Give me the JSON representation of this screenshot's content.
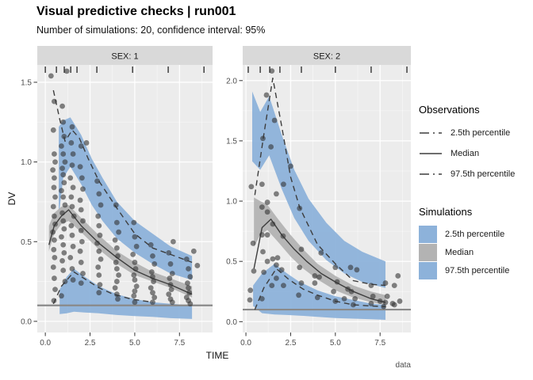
{
  "header": {
    "title": "Visual predictive checks | run001",
    "subtitle": "Number of simulations: 20, confidence interval: 95%"
  },
  "caption": "data",
  "axes": {
    "x_label": "TIME",
    "y_label": "DV"
  },
  "colors": {
    "sim_blue": "#8DB2DA",
    "sim_gray": "#B3B3B3",
    "obs_line": "#3D3D3D",
    "lloq_line": "#8A8A8A",
    "point": "#333333",
    "panel_bg": "#ECECEC",
    "strip_bg": "#D9D9D9",
    "grid": "#FFFFFF",
    "tick_text": "#4D4D4D",
    "strip_text": "#1A1A1A"
  },
  "legend": {
    "observations": {
      "title": "Observations",
      "items": [
        {
          "label": "2.5th percentile",
          "style": "dashed"
        },
        {
          "label": "Median",
          "style": "solid"
        },
        {
          "label": "97.5th percentile",
          "style": "dashed"
        }
      ]
    },
    "simulations": {
      "title": "Simulations",
      "items": [
        {
          "label": "2.5th percentile",
          "color": "#8DB2DA"
        },
        {
          "label": "Median",
          "color": "#B3B3B3"
        },
        {
          "label": "97.5th percentile",
          "color": "#8DB2DA"
        }
      ]
    }
  },
  "chart_data": [
    {
      "type": "scatter",
      "facet_label": "SEX: 1",
      "xlim": [
        -0.45,
        9.35
      ],
      "ylim": [
        -0.07,
        1.609
      ],
      "x_ticks": {
        "values": [
          0,
          2.5,
          5,
          7.5
        ],
        "labels": [
          "0.0",
          "2.5",
          "5.0",
          "7.5"
        ]
      },
      "y_ticks": {
        "values": [
          0,
          0.5,
          1.0,
          1.5
        ],
        "labels": [
          "0.0",
          "0.5",
          "1.0",
          "1.5"
        ]
      },
      "lloq": 0.1,
      "rug": [
        0.0,
        0.62,
        1.06,
        1.42,
        1.77,
        2.88,
        4.88,
        6.87,
        8.87
      ],
      "ribbon_p975": {
        "x": [
          0.75,
          1.0,
          1.4,
          2.0,
          2.6,
          3.2,
          4.0,
          5.0,
          6.0,
          7.0,
          8.2
        ],
        "upper": [
          1.22,
          1.26,
          1.28,
          1.17,
          1.02,
          0.9,
          0.75,
          0.63,
          0.55,
          0.47,
          0.41
        ],
        "lower": [
          0.66,
          0.9,
          0.97,
          0.86,
          0.73,
          0.63,
          0.52,
          0.43,
          0.36,
          0.3,
          0.26
        ]
      },
      "ribbon_median": {
        "x": [
          0.2,
          0.5,
          0.9,
          1.3,
          2.0,
          3.0,
          4.0,
          5.0,
          6.0,
          7.0,
          8.2
        ],
        "upper": [
          0.6,
          0.68,
          0.72,
          0.73,
          0.65,
          0.54,
          0.44,
          0.37,
          0.31,
          0.27,
          0.22
        ],
        "lower": [
          0.44,
          0.55,
          0.61,
          0.63,
          0.56,
          0.45,
          0.36,
          0.29,
          0.25,
          0.21,
          0.15
        ]
      },
      "ribbon_p025": {
        "x": [
          0.8,
          1.2,
          1.6,
          2.2,
          3.0,
          4.0,
          5.0,
          6.0,
          7.0,
          8.2
        ],
        "upper": [
          0.2,
          0.28,
          0.33,
          0.28,
          0.22,
          0.17,
          0.14,
          0.12,
          0.11,
          0.1
        ],
        "lower": [
          0.045,
          0.05,
          0.06,
          0.055,
          0.05,
          0.04,
          0.033,
          0.028,
          0.02,
          0.015
        ]
      },
      "obs_p975": {
        "x": [
          0.45,
          0.8,
          1.1,
          1.5,
          1.9,
          2.4,
          3.0,
          4.0,
          5.0,
          6.0,
          7.0,
          8.2
        ],
        "y": [
          1.45,
          1.27,
          1.13,
          1.2,
          1.15,
          1.02,
          0.88,
          0.71,
          0.55,
          0.46,
          0.42,
          0.37
        ]
      },
      "obs_median": {
        "x": [
          0.2,
          0.5,
          0.9,
          1.3,
          2.0,
          3.0,
          4.0,
          5.0,
          6.0,
          7.0,
          8.2
        ],
        "y": [
          0.48,
          0.6,
          0.66,
          0.7,
          0.6,
          0.49,
          0.4,
          0.32,
          0.27,
          0.23,
          0.17
        ]
      },
      "obs_p025": {
        "x": [
          0.45,
          0.9,
          1.6,
          2.3,
          3.0,
          3.8,
          4.8,
          6.0
        ],
        "y": [
          0.11,
          0.22,
          0.31,
          0.26,
          0.21,
          0.17,
          0.14,
          0.12
        ]
      },
      "points": [
        [
          0.32,
          1.54
        ],
        [
          0.5,
          1.38
        ],
        [
          0.45,
          1.2
        ],
        [
          0.5,
          1.05
        ],
        [
          0.55,
          1.0
        ],
        [
          0.42,
          0.95
        ],
        [
          0.5,
          0.9
        ],
        [
          0.48,
          0.84
        ],
        [
          0.55,
          0.78
        ],
        [
          0.45,
          0.72
        ],
        [
          0.5,
          0.66
        ],
        [
          0.55,
          0.61
        ],
        [
          0.42,
          0.56
        ],
        [
          0.5,
          0.51
        ],
        [
          0.47,
          0.45
        ],
        [
          0.52,
          0.4
        ],
        [
          0.45,
          0.34
        ],
        [
          0.5,
          0.27
        ],
        [
          0.55,
          0.2
        ],
        [
          0.48,
          0.13
        ],
        [
          1.2,
          1.57
        ],
        [
          0.95,
          1.35
        ],
        [
          1.0,
          1.25
        ],
        [
          1.05,
          1.16
        ],
        [
          0.9,
          1.1
        ],
        [
          1.0,
          1.05
        ],
        [
          1.1,
          1.0
        ],
        [
          0.95,
          0.96
        ],
        [
          1.0,
          0.92
        ],
        [
          1.05,
          0.87
        ],
        [
          0.9,
          0.82
        ],
        [
          1.0,
          0.78
        ],
        [
          1.1,
          0.73
        ],
        [
          0.95,
          0.68
        ],
        [
          1.0,
          0.63
        ],
        [
          1.05,
          0.58
        ],
        [
          0.9,
          0.53
        ],
        [
          1.0,
          0.48
        ],
        [
          1.05,
          0.43
        ],
        [
          0.95,
          0.38
        ],
        [
          1.0,
          0.32
        ],
        [
          1.1,
          0.25
        ],
        [
          0.9,
          0.16
        ],
        [
          1.5,
          1.22
        ],
        [
          1.45,
          1.12
        ],
        [
          1.55,
          1.05
        ],
        [
          1.5,
          0.98
        ],
        [
          1.4,
          0.9
        ],
        [
          1.55,
          0.84
        ],
        [
          1.45,
          0.78
        ],
        [
          1.5,
          0.72
        ],
        [
          1.6,
          0.66
        ],
        [
          1.45,
          0.6
        ],
        [
          1.5,
          0.54
        ],
        [
          1.55,
          0.47
        ],
        [
          1.4,
          0.4
        ],
        [
          1.5,
          0.33
        ],
        [
          1.55,
          0.26
        ],
        [
          2.0,
          1.1
        ],
        [
          2.3,
          1.12
        ],
        [
          1.95,
          0.97
        ],
        [
          2.05,
          0.9
        ],
        [
          2.1,
          0.83
        ],
        [
          1.95,
          0.76
        ],
        [
          2.0,
          0.7
        ],
        [
          2.1,
          0.63
        ],
        [
          2.0,
          0.57
        ],
        [
          2.05,
          0.5
        ],
        [
          1.95,
          0.44
        ],
        [
          2.0,
          0.37
        ],
        [
          2.1,
          0.3
        ],
        [
          2.0,
          0.24
        ],
        [
          2.9,
          0.88
        ],
        [
          3.0,
          0.8
        ],
        [
          3.1,
          0.73
        ],
        [
          2.95,
          0.66
        ],
        [
          3.0,
          0.6
        ],
        [
          3.05,
          0.54
        ],
        [
          2.9,
          0.49
        ],
        [
          3.0,
          0.44
        ],
        [
          3.1,
          0.39
        ],
        [
          2.95,
          0.34
        ],
        [
          3.0,
          0.29
        ],
        [
          3.05,
          0.23
        ],
        [
          3.0,
          0.18
        ],
        [
          3.95,
          0.73
        ],
        [
          4.0,
          0.62
        ],
        [
          4.1,
          0.56
        ],
        [
          3.9,
          0.51
        ],
        [
          4.0,
          0.46
        ],
        [
          4.05,
          0.41
        ],
        [
          3.95,
          0.37
        ],
        [
          4.0,
          0.33
        ],
        [
          4.1,
          0.29
        ],
        [
          4.0,
          0.25
        ],
        [
          3.9,
          0.21
        ],
        [
          4.0,
          0.17
        ],
        [
          4.05,
          0.14
        ],
        [
          4.95,
          0.62
        ],
        [
          5.0,
          0.53
        ],
        [
          5.1,
          0.47
        ],
        [
          4.9,
          0.42
        ],
        [
          5.0,
          0.37
        ],
        [
          5.05,
          0.33
        ],
        [
          4.95,
          0.29
        ],
        [
          5.0,
          0.26
        ],
        [
          5.1,
          0.22
        ],
        [
          5.0,
          0.19
        ],
        [
          4.95,
          0.16
        ],
        [
          5.0,
          0.12
        ],
        [
          5.9,
          0.48
        ],
        [
          6.0,
          0.41
        ],
        [
          6.1,
          0.36
        ],
        [
          5.95,
          0.31
        ],
        [
          6.0,
          0.28
        ],
        [
          6.05,
          0.25
        ],
        [
          5.9,
          0.21
        ],
        [
          6.0,
          0.18
        ],
        [
          6.1,
          0.15
        ],
        [
          6.0,
          0.12
        ],
        [
          6.9,
          0.43
        ],
        [
          7.0,
          0.36
        ],
        [
          7.1,
          0.3
        ],
        [
          6.95,
          0.27
        ],
        [
          7.0,
          0.23
        ],
        [
          7.05,
          0.2
        ],
        [
          7.15,
          0.5
        ],
        [
          6.9,
          0.17
        ],
        [
          7.0,
          0.14
        ],
        [
          7.1,
          0.12
        ],
        [
          7.9,
          0.39
        ],
        [
          8.0,
          0.33
        ],
        [
          8.1,
          0.28
        ],
        [
          7.95,
          0.24
        ],
        [
          8.0,
          0.21
        ],
        [
          8.05,
          0.18
        ],
        [
          7.9,
          0.15
        ],
        [
          8.0,
          0.13
        ],
        [
          8.1,
          0.11
        ],
        [
          8.3,
          0.44
        ],
        [
          8.5,
          0.35
        ]
      ]
    },
    {
      "type": "scatter",
      "facet_label": "SEX: 2",
      "xlim": [
        -0.18,
        9.22
      ],
      "ylim": [
        -0.09,
        2.13
      ],
      "x_ticks": {
        "values": [
          0,
          2.5,
          5,
          7.5
        ],
        "labels": [
          "0.0",
          "2.5",
          "5.0",
          "7.5"
        ]
      },
      "y_ticks": {
        "values": [
          0,
          0.5,
          1.0,
          1.5,
          2.0
        ],
        "labels": [
          "0.0",
          "0.5",
          "1.0",
          "1.5",
          "2.0"
        ]
      },
      "lloq": 0.1,
      "rug": [
        0.13,
        0.8,
        1.33,
        1.9,
        3.1,
        5.0,
        7.0,
        9.0
      ],
      "ribbon_p975": {
        "x": [
          0.35,
          0.8,
          1.3,
          2.0,
          2.7,
          3.5,
          4.5,
          5.5,
          6.5,
          7.8
        ],
        "upper": [
          1.91,
          1.74,
          1.87,
          1.55,
          1.26,
          1.02,
          0.82,
          0.67,
          0.58,
          0.5
        ],
        "lower": [
          1.33,
          1.26,
          1.38,
          1.1,
          0.86,
          0.67,
          0.51,
          0.4,
          0.33,
          0.28
        ]
      },
      "ribbon_median": {
        "x": [
          0.45,
          0.8,
          1.2,
          1.8,
          2.5,
          3.2,
          4.0,
          5.0,
          6.0,
          7.0,
          7.8
        ],
        "upper": [
          1.03,
          1.0,
          0.97,
          0.85,
          0.72,
          0.6,
          0.48,
          0.38,
          0.3,
          0.25,
          0.22
        ],
        "lower": [
          0.62,
          0.72,
          0.76,
          0.66,
          0.54,
          0.44,
          0.35,
          0.26,
          0.2,
          0.16,
          0.14
        ]
      },
      "ribbon_p025": {
        "x": [
          0.4,
          0.9,
          1.6,
          2.3,
          3.0,
          4.0,
          5.0,
          6.0,
          7.0,
          7.8
        ],
        "upper": [
          0.3,
          0.4,
          0.48,
          0.4,
          0.33,
          0.26,
          0.21,
          0.18,
          0.15,
          0.14
        ],
        "lower": [
          0.13,
          0.07,
          0.06,
          0.055,
          0.05,
          0.04,
          0.03,
          0.025,
          0.02,
          0.015
        ]
      },
      "obs_p975": {
        "x": [
          0.5,
          1.0,
          1.5,
          2.0,
          2.5,
          3.0,
          4.0,
          5.0,
          6.0,
          7.0,
          7.8
        ],
        "y": [
          1.05,
          1.55,
          2.02,
          1.62,
          1.2,
          0.95,
          0.64,
          0.48,
          0.34,
          0.31,
          0.3
        ]
      },
      "obs_median": {
        "x": [
          0.45,
          0.9,
          1.4,
          2.0,
          2.7,
          3.4,
          4.2,
          5.0,
          6.0,
          7.0,
          7.8
        ],
        "y": [
          0.44,
          0.78,
          0.85,
          0.72,
          0.6,
          0.5,
          0.4,
          0.33,
          0.25,
          0.19,
          0.16
        ]
      },
      "obs_p025": {
        "x": [
          0.5,
          1.0,
          1.7,
          2.4,
          3.2,
          4.0,
          5.0,
          6.0,
          7.0,
          7.8
        ],
        "y": [
          0.1,
          0.28,
          0.44,
          0.35,
          0.27,
          0.22,
          0.17,
          0.14,
          0.13,
          0.125
        ]
      },
      "points": [
        [
          0.3,
          1.12
        ],
        [
          0.25,
          0.26
        ],
        [
          0.22,
          0.18
        ],
        [
          0.44,
          0.42
        ],
        [
          0.4,
          0.65
        ],
        [
          0.9,
          1.14
        ],
        [
          0.95,
          1.52
        ],
        [
          0.9,
          0.95
        ],
        [
          0.9,
          0.72
        ],
        [
          0.95,
          0.58
        ],
        [
          1.0,
          0.41
        ],
        [
          0.9,
          0.19
        ],
        [
          1.15,
          1.88
        ],
        [
          1.2,
          0.99
        ],
        [
          1.2,
          0.91
        ],
        [
          1.2,
          0.72
        ],
        [
          1.2,
          0.5
        ],
        [
          1.45,
          2.08
        ],
        [
          1.4,
          1.45
        ],
        [
          1.5,
          0.81
        ],
        [
          1.5,
          0.52
        ],
        [
          1.45,
          0.3
        ],
        [
          1.6,
          1.67
        ],
        [
          1.7,
          1.06
        ],
        [
          1.7,
          0.47
        ],
        [
          1.7,
          0.36
        ],
        [
          1.77,
          0.53
        ],
        [
          2.1,
          1.14
        ],
        [
          2.08,
          0.71
        ],
        [
          2.0,
          0.43
        ],
        [
          2.1,
          0.3
        ],
        [
          2.5,
          1.29
        ],
        [
          3.0,
          0.94
        ],
        [
          3.1,
          0.6
        ],
        [
          3.0,
          0.45
        ],
        [
          3.1,
          0.32
        ],
        [
          2.95,
          0.22
        ],
        [
          3.85,
          0.38
        ],
        [
          4.1,
          0.37
        ],
        [
          3.85,
          0.32
        ],
        [
          4.2,
          0.57
        ],
        [
          4.0,
          0.2
        ],
        [
          5.0,
          0.45
        ],
        [
          5.1,
          0.33
        ],
        [
          4.9,
          0.25
        ],
        [
          5.0,
          0.17
        ],
        [
          5.5,
          0.19
        ],
        [
          5.7,
          0.27
        ],
        [
          5.85,
          0.45
        ],
        [
          5.9,
          0.25
        ],
        [
          6.2,
          0.43
        ],
        [
          6.1,
          0.19
        ],
        [
          6.0,
          0.14
        ],
        [
          7.0,
          0.3
        ],
        [
          7.1,
          0.21
        ],
        [
          7.0,
          0.15
        ],
        [
          7.8,
          0.32
        ],
        [
          7.5,
          0.17
        ],
        [
          7.8,
          0.16
        ],
        [
          7.7,
          0.125
        ],
        [
          7.9,
          0.21
        ],
        [
          8.2,
          0.15
        ],
        [
          8.3,
          0.3
        ],
        [
          8.3,
          0.14
        ],
        [
          8.5,
          0.38
        ],
        [
          8.6,
          0.17
        ]
      ]
    }
  ]
}
